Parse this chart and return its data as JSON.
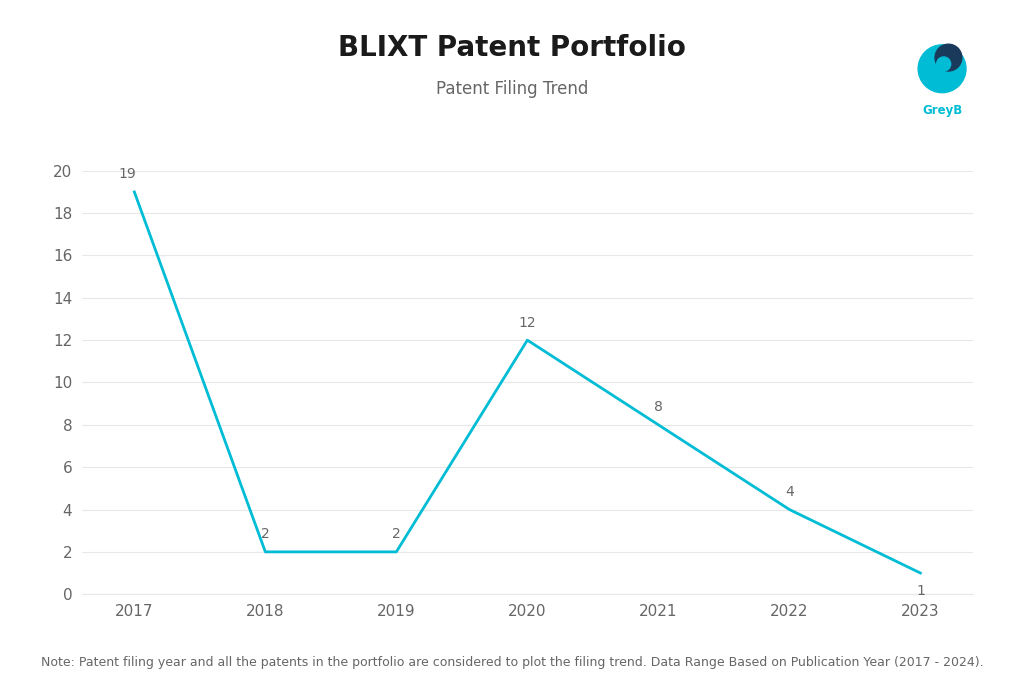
{
  "title": "BLIXT Patent Portfolio",
  "subtitle": "Patent Filing Trend",
  "years": [
    2017,
    2018,
    2019,
    2020,
    2021,
    2022,
    2023
  ],
  "values": [
    19,
    2,
    2,
    12,
    8,
    4,
    1
  ],
  "line_color": "#00BCD4",
  "background_color": "#ffffff",
  "ylim": [
    0,
    20
  ],
  "yticks": [
    0,
    2,
    4,
    6,
    8,
    10,
    12,
    14,
    16,
    18,
    20
  ],
  "title_fontsize": 20,
  "subtitle_fontsize": 12,
  "tick_fontsize": 11,
  "annotation_fontsize": 10,
  "note_text": "Note: Patent filing year and all the patents in the portfolio are considered to plot the filing trend. Data Range Based on Publication Year (2017 - 2024).",
  "note_fontsize": 9,
  "line_width": 2.0,
  "title_color": "#1a1a1a",
  "subtitle_color": "#666666",
  "tick_color": "#666666",
  "grid_color": "#e8e8e8",
  "note_color": "#666666",
  "logo_teal": "#00BCD4",
  "logo_dark": "#1a3a5c",
  "logo_text_color": "#00BCD4"
}
